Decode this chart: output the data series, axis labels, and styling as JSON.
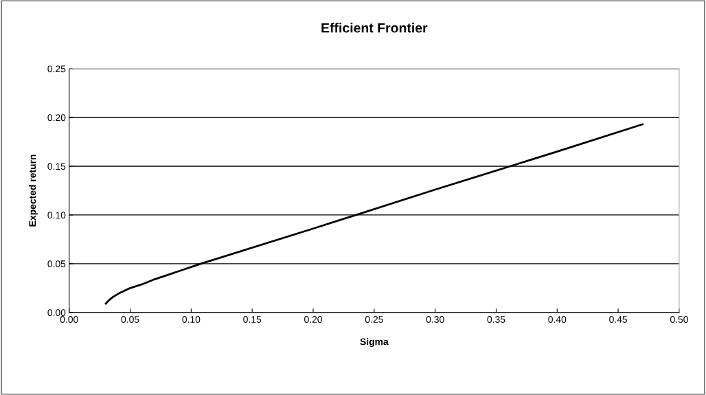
{
  "chart_data": {
    "type": "line",
    "title": "Efficient Frontier",
    "xlabel": "Sigma",
    "ylabel": "Expected return",
    "x": [
      0.03,
      0.033,
      0.036,
      0.04,
      0.045,
      0.05,
      0.06,
      0.07,
      0.108,
      0.2,
      0.3,
      0.4,
      0.47
    ],
    "series": [
      {
        "color": "#000000",
        "values": [
          0.009,
          0.013,
          0.016,
          0.019,
          0.022,
          0.025,
          0.029,
          0.034,
          0.05,
          0.086,
          0.126,
          0.165,
          0.193
        ]
      }
    ],
    "xlim": [
      0,
      0.5
    ],
    "ylim": [
      0,
      0.25
    ],
    "xticks": [
      {
        "value": 0,
        "label": "0.00"
      },
      {
        "value": 0.05,
        "label": "0.05"
      },
      {
        "value": 0.1,
        "label": "0.10"
      },
      {
        "value": 0.15,
        "label": "0.15"
      },
      {
        "value": 0.2,
        "label": "0.20"
      },
      {
        "value": 0.25,
        "label": "0.25"
      },
      {
        "value": 0.3,
        "label": "0.30"
      },
      {
        "value": 0.35,
        "label": "0.35"
      },
      {
        "value": 0.4,
        "label": "0.40"
      },
      {
        "value": 0.45,
        "label": "0.45"
      },
      {
        "value": 0.5,
        "label": "0.50"
      }
    ],
    "yticks": [
      {
        "value": 0,
        "label": "0.00"
      },
      {
        "value": 0.05,
        "label": "0.05"
      },
      {
        "value": 0.1,
        "label": "0.10"
      },
      {
        "value": 0.15,
        "label": "0.15"
      },
      {
        "value": 0.2,
        "label": "0.20"
      },
      {
        "value": 0.25,
        "label": "0.25"
      }
    ],
    "grid": "y",
    "line_style": "solid"
  }
}
